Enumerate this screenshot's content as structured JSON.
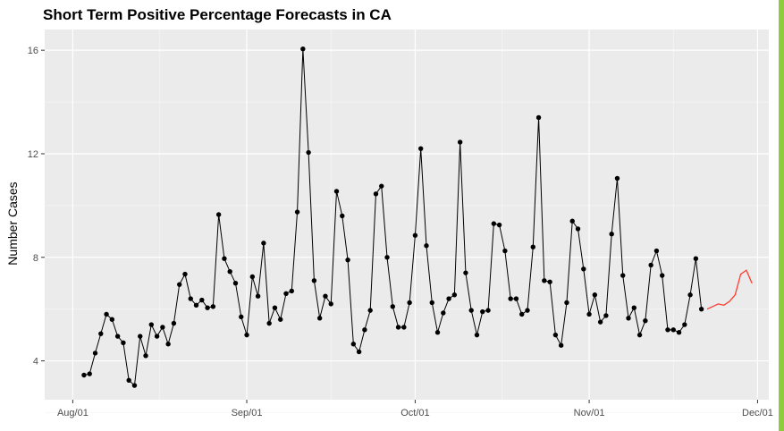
{
  "colors": {
    "panel": "#ebebeb",
    "grid_major": "#ffffff",
    "grid_minor": "#f5f5f5",
    "series_observed": "#000000",
    "series_forecast": "#ff3b2f",
    "accent_bar": "#8fcc3b"
  },
  "chart_data": {
    "type": "line",
    "title": "Short Term Positive Percentage Forecasts in CA",
    "xlabel": "",
    "ylabel": "Number Cases",
    "x_ticks": [
      "Aug/01",
      "Sep/01",
      "Oct/01",
      "Nov/01",
      "Dec/01"
    ],
    "y_ticks": [
      4,
      8,
      12,
      16
    ],
    "xlim": [
      "2020-07-27",
      "2020-12-03"
    ],
    "ylim": [
      2.5,
      16.8
    ],
    "grid": true,
    "series": [
      {
        "role": "observed",
        "style": "line+points",
        "start_date": "2020-08-03",
        "values": [
          3.45,
          3.5,
          4.3,
          5.05,
          5.8,
          5.6,
          4.95,
          4.7,
          3.25,
          3.05,
          4.95,
          4.2,
          5.4,
          4.95,
          5.3,
          4.65,
          5.45,
          6.95,
          7.35,
          6.4,
          6.15,
          6.35,
          6.05,
          6.1,
          9.65,
          7.95,
          7.45,
          7.0,
          5.7,
          5.0,
          7.25,
          6.5,
          8.55,
          5.45,
          6.05,
          5.6,
          6.6,
          6.7,
          9.75,
          16.05,
          12.05,
          7.1,
          5.65,
          6.5,
          6.2,
          10.55,
          9.6,
          7.9,
          4.65,
          4.35,
          5.2,
          5.95,
          10.45,
          10.75,
          8.0,
          6.1,
          5.3,
          5.3,
          6.25,
          8.85,
          12.2,
          8.45,
          6.25,
          5.1,
          5.85,
          6.4,
          6.55,
          12.45,
          7.4,
          5.95,
          5.0,
          5.9,
          5.95,
          9.3,
          9.25,
          8.25,
          6.4,
          6.4,
          5.8,
          5.95,
          8.4,
          13.4,
          7.1,
          7.05,
          5.0,
          4.6,
          6.25,
          9.4,
          9.1,
          7.55,
          5.8,
          6.55,
          5.5,
          5.75,
          8.9,
          11.05,
          7.3,
          5.65,
          6.05,
          5.0,
          5.55,
          7.7,
          8.25,
          7.3,
          5.2,
          5.2,
          5.1,
          5.4,
          6.55,
          7.95,
          6.0
        ]
      },
      {
        "role": "forecast",
        "style": "line",
        "start_date": "2020-11-22",
        "values": [
          6.0,
          6.1,
          6.2,
          6.15,
          6.3,
          6.55,
          7.35,
          7.5,
          7.0
        ]
      }
    ]
  }
}
